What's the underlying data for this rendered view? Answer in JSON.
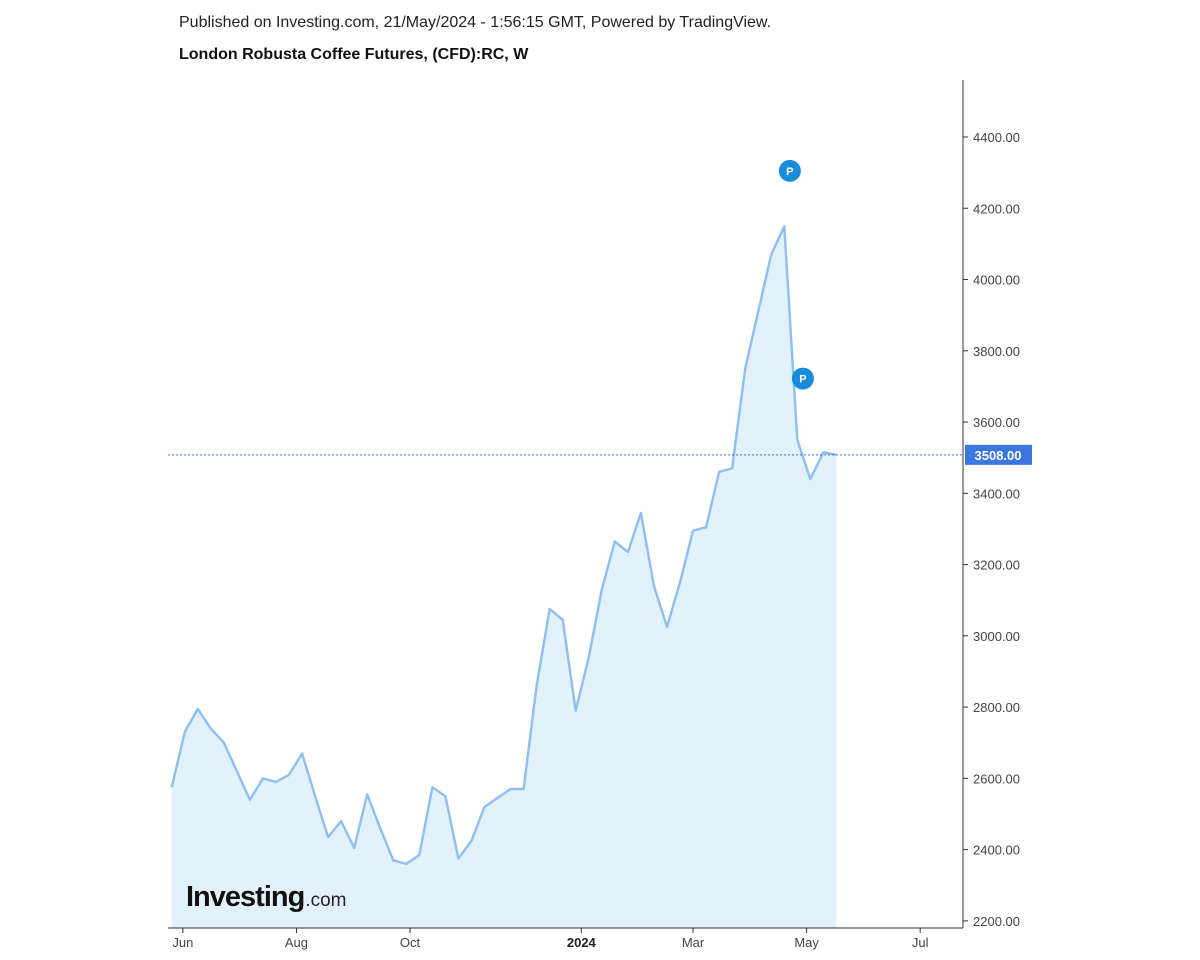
{
  "header": {
    "published": "Published on Investing.com, 21/May/2024 - 1:56:15 GMT, Powered by TradingView.",
    "title": "London Robusta Coffee Futures, (CFD):RC, W"
  },
  "logo": {
    "main": "Investing",
    "suffix": ".com"
  },
  "colors": {
    "line": "#8fbff0",
    "fill": "#e3f1fb",
    "last_price": "#3a78e0",
    "marker": "#1a8cdc"
  },
  "chart_data": {
    "type": "area",
    "title": "London Robusta Coffee Futures, (CFD):RC, W",
    "xlabel": "",
    "ylabel": "",
    "ylim": [
      2180,
      4560
    ],
    "y_ticks": [
      "2200.00",
      "2400.00",
      "2600.00",
      "2800.00",
      "3000.00",
      "3200.00",
      "3400.00",
      "3600.00",
      "3800.00",
      "4000.00",
      "4200.00",
      "4400.00"
    ],
    "x_ticks": [
      {
        "label": "Jun",
        "date": "2023-06-01",
        "bold": false
      },
      {
        "label": "Aug",
        "date": "2023-08-01",
        "bold": false
      },
      {
        "label": "Oct",
        "date": "2023-10-01",
        "bold": false
      },
      {
        "label": "2024",
        "date": "2024-01-01",
        "bold": true
      },
      {
        "label": "Mar",
        "date": "2024-03-01",
        "bold": false
      },
      {
        "label": "May",
        "date": "2024-05-01",
        "bold": false
      },
      {
        "label": "Jul",
        "date": "2024-07-01",
        "bold": false
      }
    ],
    "x_range": [
      "2023-05-24",
      "2024-07-24"
    ],
    "last_price": {
      "value": 3508,
      "label": "3508.00"
    },
    "markers": [
      {
        "label": "P",
        "date": "2024-04-22",
        "value": 4305
      },
      {
        "label": "P",
        "date": "2024-04-29",
        "value": 3722
      }
    ],
    "series": [
      {
        "x": [
          "2023-05-26",
          "2023-06-02",
          "2023-06-09",
          "2023-06-16",
          "2023-06-23",
          "2023-06-30",
          "2023-07-07",
          "2023-07-14",
          "2023-07-21",
          "2023-07-28",
          "2023-08-04",
          "2023-08-11",
          "2023-08-18",
          "2023-08-25",
          "2023-09-01",
          "2023-09-08",
          "2023-09-15",
          "2023-09-22",
          "2023-09-29",
          "2023-10-06",
          "2023-10-13",
          "2023-10-20",
          "2023-10-27",
          "2023-11-03",
          "2023-11-10",
          "2023-11-17",
          "2023-11-24",
          "2023-12-01",
          "2023-12-08",
          "2023-12-15",
          "2023-12-22",
          "2023-12-29",
          "2024-01-05",
          "2024-01-12",
          "2024-01-19",
          "2024-01-26",
          "2024-02-02",
          "2024-02-09",
          "2024-02-16",
          "2024-02-23",
          "2024-03-01",
          "2024-03-08",
          "2024-03-15",
          "2024-03-22",
          "2024-03-29",
          "2024-04-05",
          "2024-04-12",
          "2024-04-19",
          "2024-04-26",
          "2024-05-03",
          "2024-05-10",
          "2024-05-17"
        ],
        "values": [
          2575,
          2730,
          2795,
          2740,
          2700,
          2620,
          2540,
          2600,
          2590,
          2610,
          2670,
          2550,
          2435,
          2480,
          2405,
          2555,
          2460,
          2370,
          2360,
          2385,
          2575,
          2550,
          2375,
          2425,
          2520,
          2545,
          2570,
          2570,
          2860,
          3075,
          3045,
          2790,
          2940,
          3130,
          3265,
          3235,
          3345,
          3140,
          3025,
          3150,
          3295,
          3305,
          3460,
          3470,
          3750,
          3910,
          4070,
          4150,
          3550,
          3440,
          3515,
          3508
        ]
      }
    ]
  }
}
